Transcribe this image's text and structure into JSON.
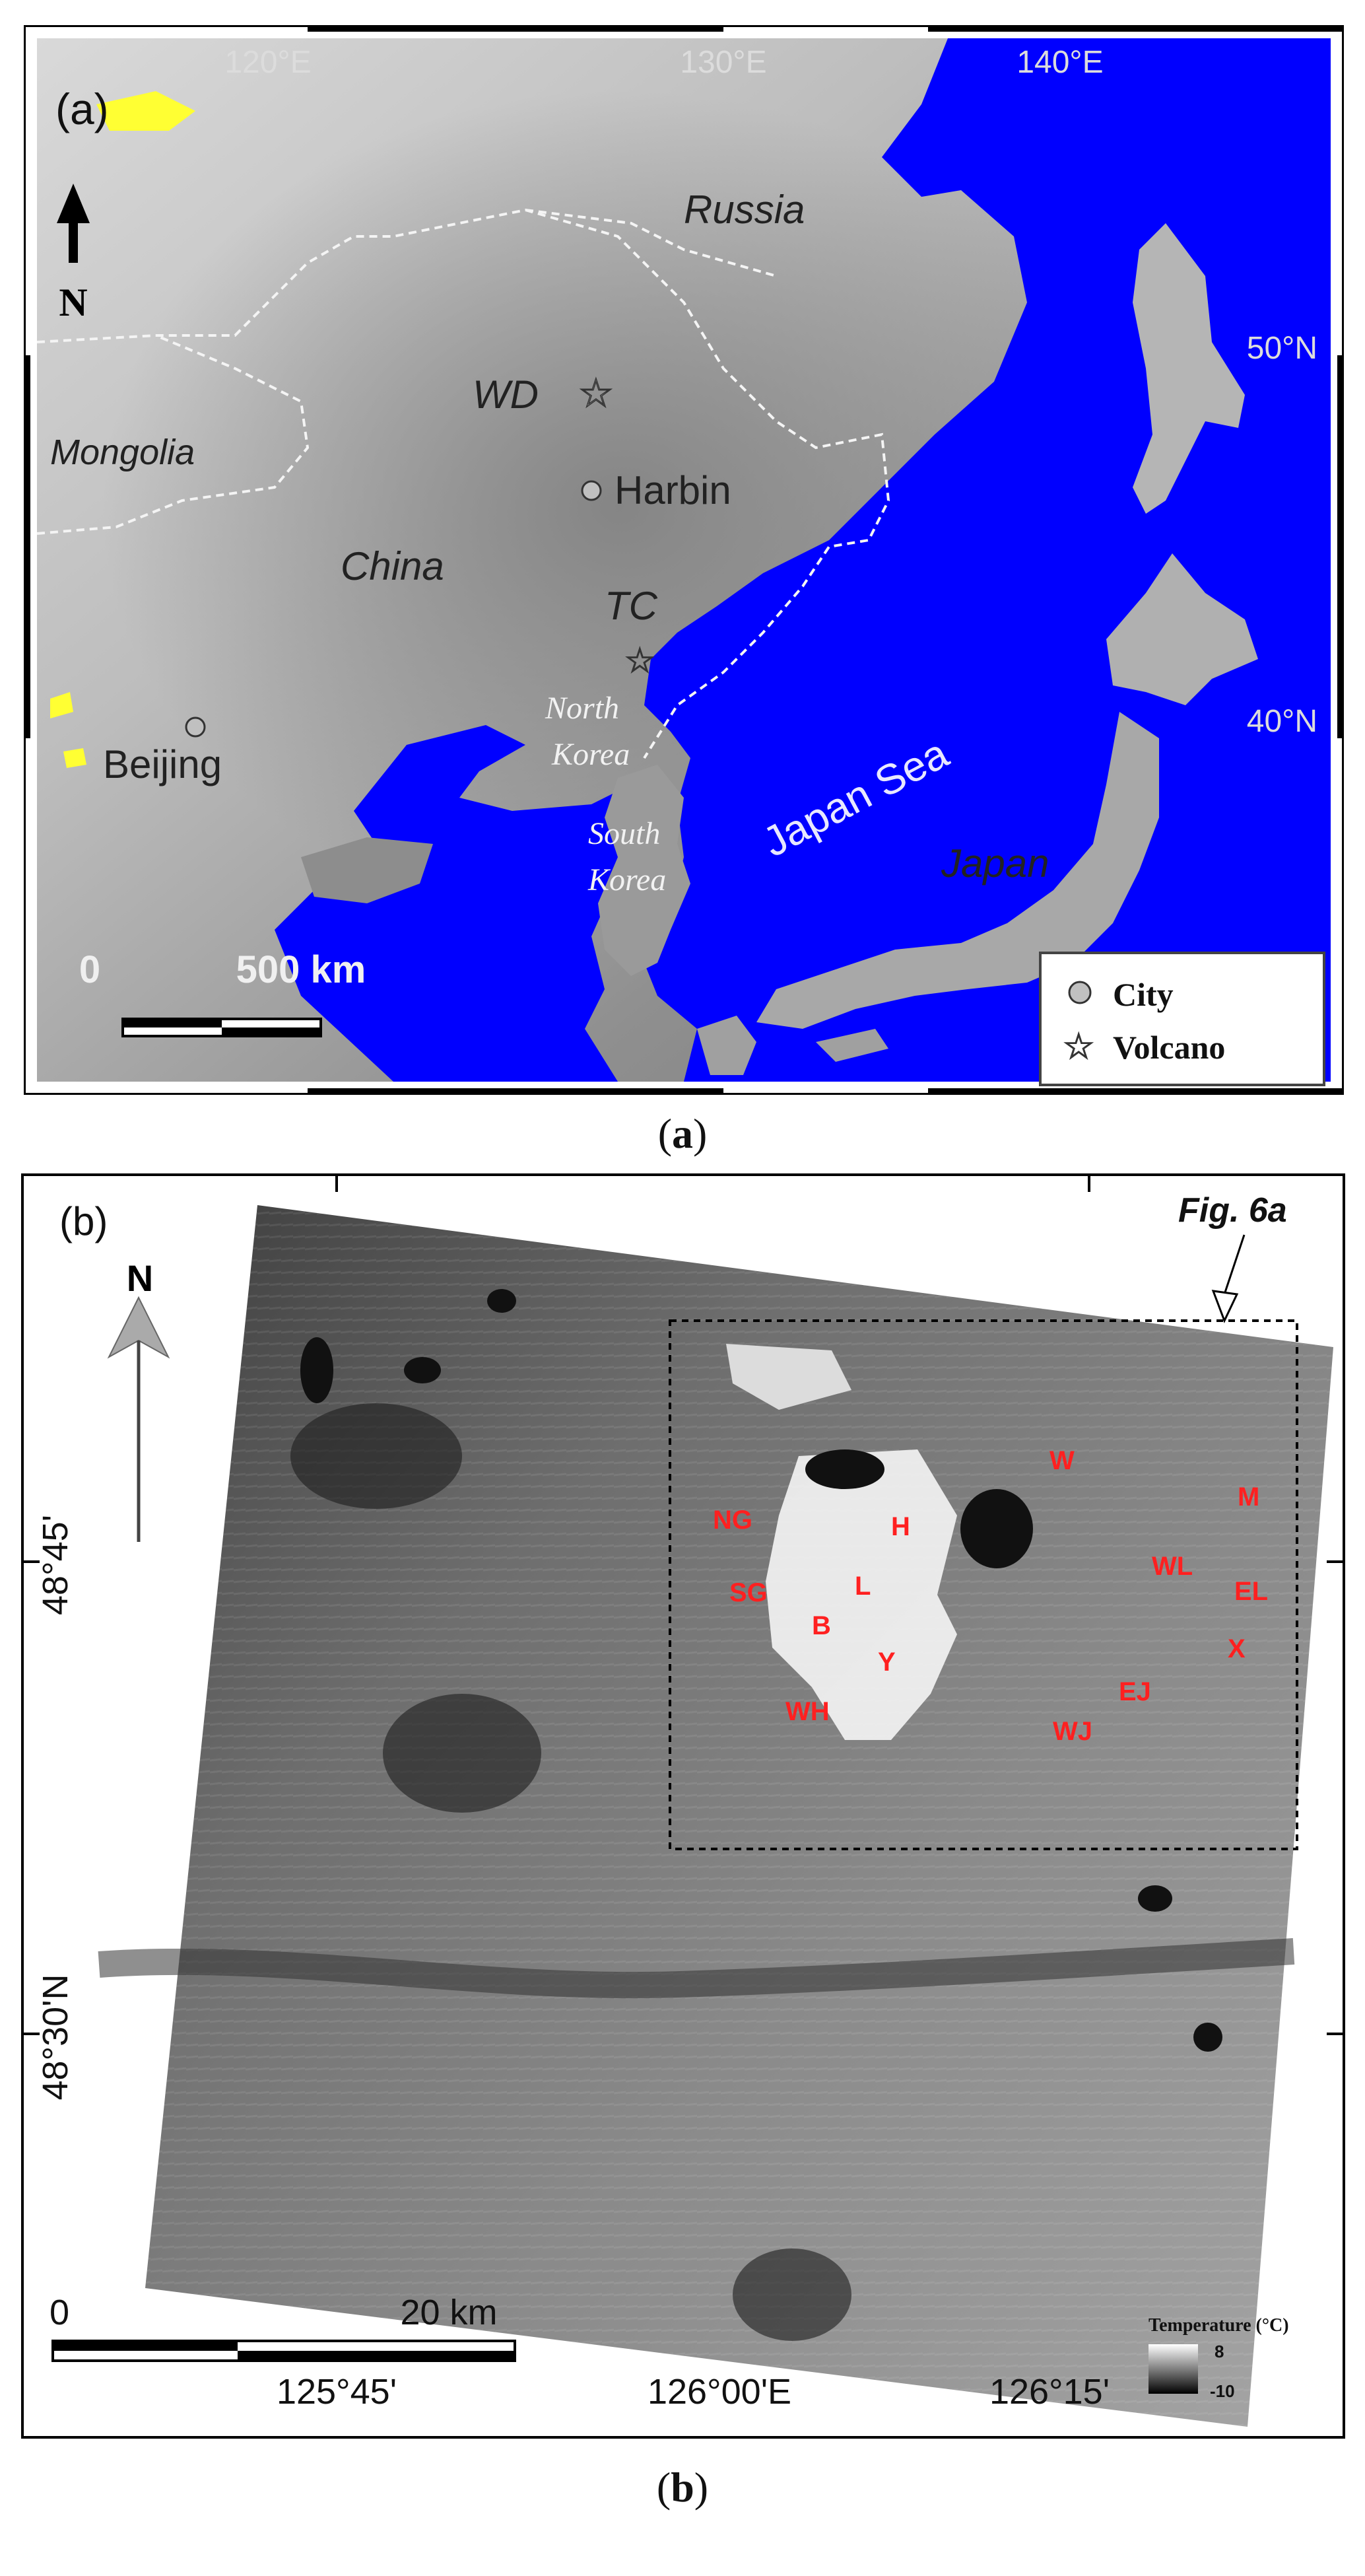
{
  "panel_a": {
    "label": "(a)",
    "lon_ticks": [
      "120°E",
      "130°E",
      "140°E"
    ],
    "lat_ticks": [
      "50°N",
      "40°N"
    ],
    "north": "N",
    "places": {
      "russia": "Russia",
      "mongolia": "Mongolia",
      "china": "China",
      "wd": "WD",
      "harbin": "Harbin",
      "tc": "TC",
      "beijing": "Beijing",
      "north_korea": [
        "North",
        "Korea"
      ],
      "south_korea": [
        "South",
        "Korea"
      ],
      "japan_sea": "Japan Sea",
      "japan": "Japan"
    },
    "scalebar": {
      "start": "0",
      "end": "500 km"
    },
    "legend": {
      "city": "City",
      "volcano": "Volcano"
    },
    "colors": {
      "sea": "#0000ff",
      "lava_highlight": "#ffff33"
    }
  },
  "caption_a": {
    "open": "(",
    "letter": "a",
    "close": ")"
  },
  "panel_b": {
    "label": "(b)",
    "inset_label": "Fig. 6a",
    "north": "N",
    "lat_ticks": [
      "48°45'",
      "48°30'N"
    ],
    "lon_ticks": [
      "125°45'",
      "126°00'E",
      "126°15'"
    ],
    "volcano_labels": [
      "NG",
      "SG",
      "H",
      "L",
      "B",
      "Y",
      "WH",
      "W",
      "M",
      "WL",
      "EL",
      "X",
      "EJ",
      "WJ"
    ],
    "scalebar": {
      "start": "0",
      "end": "20 km"
    },
    "colorbar": {
      "title": "Temperature (°C)",
      "max": "8",
      "min": "-10"
    },
    "colors": {
      "volcano_label": "#ff2020"
    }
  },
  "caption_b": {
    "open": "(",
    "letter": "b",
    "close": ")"
  }
}
